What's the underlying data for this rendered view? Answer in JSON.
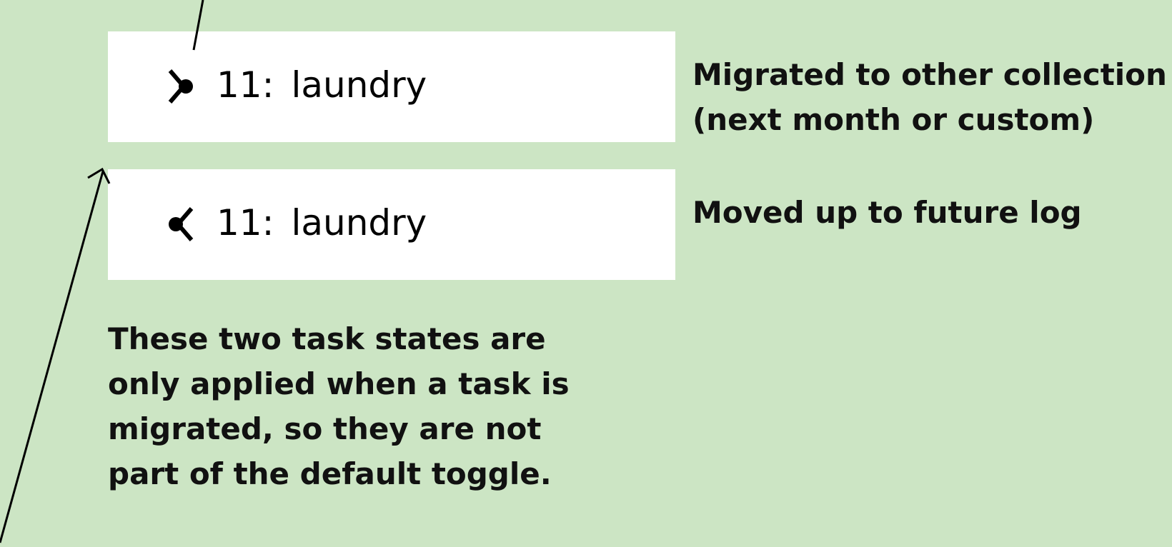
{
  "tasks": [
    {
      "number": "11:",
      "label": "laundry",
      "icon": "migrated-right-icon"
    },
    {
      "number": "11:",
      "label": "laundry",
      "icon": "moved-up-left-icon"
    }
  ],
  "notes": {
    "migrated": [
      "Migrated to other collection",
      "(next month or custom)"
    ],
    "moved_up": "Moved up to future log",
    "explanation": [
      "These two task states are",
      "only applied when a task is",
      "migrated, so they are not",
      "part of the default toggle."
    ]
  },
  "colors": {
    "background": "#cce5c4",
    "card": "#ffffff",
    "ink": "#000000"
  }
}
